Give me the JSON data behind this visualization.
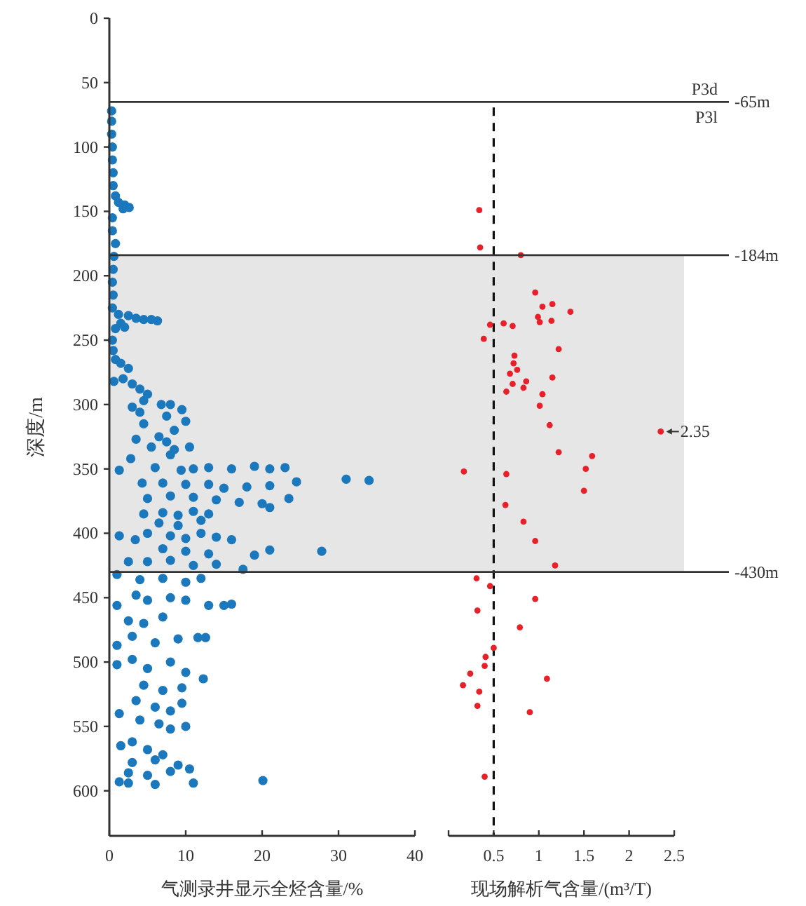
{
  "chart_data": [
    {
      "type": "scatter",
      "xlabel": "气测录井显示全烃含量/%",
      "ylabel": "深度/m",
      "marker": "circle",
      "xlim": [
        0,
        40
      ],
      "xticks": [
        0,
        10,
        20,
        30,
        40
      ],
      "ylim": [
        635,
        0
      ],
      "yticks": [
        0,
        50,
        100,
        150,
        200,
        250,
        300,
        350,
        400,
        450,
        500,
        550,
        600
      ],
      "series": [
        {
          "color": "#1b78bd",
          "x": [
            0.3,
            0.3,
            0.3,
            0.4,
            0.4,
            0.5,
            0.5,
            0.8,
            1.2,
            2,
            2.6,
            1.8,
            0.4,
            0.4,
            0.8,
            0.6,
            0.5,
            0.4,
            0.5,
            0.4,
            1.2,
            2.5,
            3.5,
            4.5,
            5.5,
            6.3,
            1.5,
            0.8,
            2,
            0.4,
            0.5,
            0.8,
            1.5,
            2.5,
            0.6,
            1.8,
            3,
            4,
            5,
            4.5,
            6.8,
            8,
            9.5,
            3,
            4,
            7.5,
            10,
            4.5,
            8.5,
            3.5,
            6.5,
            7.5,
            5.5,
            8.5,
            10.5,
            8,
            2.8,
            1.3,
            6,
            9.4,
            11,
            13,
            16,
            19,
            21,
            23,
            31,
            34,
            4.3,
            7,
            10,
            13,
            15,
            18,
            21,
            24.5,
            5,
            8,
            11,
            14,
            17,
            20,
            23.5,
            21,
            4.5,
            7,
            9,
            11,
            13,
            6.5,
            9,
            12,
            5,
            1.3,
            3.4,
            8,
            10,
            12,
            14,
            16,
            21,
            27.8,
            7,
            10,
            13,
            19,
            2.5,
            5,
            8,
            11,
            14,
            17.5,
            1,
            4,
            7,
            10,
            12,
            1,
            3.5,
            5,
            8,
            10,
            13,
            15,
            16,
            2.5,
            4.5,
            7,
            3,
            6,
            9,
            11.6,
            12.6,
            1,
            1,
            3,
            5,
            8,
            10,
            12.3,
            4.5,
            7,
            9.5,
            3.5,
            6,
            8,
            9.5,
            4,
            6.5,
            8,
            10,
            1.3,
            1.5,
            3,
            5,
            7,
            3,
            6,
            9,
            2.5,
            5,
            8,
            10.5,
            1.3,
            2.5,
            6,
            11,
            20.1
          ],
          "values": [
            72,
            80,
            90,
            100,
            110,
            120,
            130,
            138,
            143,
            145,
            147,
            148,
            155,
            165,
            175,
            185,
            195,
            205,
            215,
            225,
            230,
            231,
            233,
            234,
            234,
            235,
            237,
            241,
            240,
            250,
            258,
            265,
            268,
            272,
            282,
            280,
            284,
            288,
            292,
            297,
            300,
            300,
            304,
            302,
            306,
            309,
            313,
            315,
            320,
            327,
            325,
            329,
            333,
            335,
            333,
            339,
            342,
            351,
            349,
            351,
            350,
            349,
            350,
            348,
            350,
            349,
            358,
            359,
            361,
            361,
            362,
            362,
            365,
            364,
            363,
            360,
            373,
            371,
            372,
            374,
            376,
            377,
            373,
            380,
            385,
            384,
            386,
            383,
            385,
            392,
            394,
            390,
            400,
            402,
            405,
            402,
            404,
            400,
            403,
            405,
            413,
            414,
            412,
            414,
            416,
            417,
            422,
            422,
            421,
            425,
            424,
            428,
            432,
            436,
            435,
            438,
            435,
            456,
            448,
            452,
            450,
            452,
            456,
            456,
            455,
            468,
            470,
            465,
            480,
            485,
            482,
            481,
            481,
            487,
            502,
            498,
            505,
            500,
            508,
            513,
            518,
            522,
            520,
            530,
            535,
            538,
            532,
            545,
            548,
            552,
            550,
            540,
            565,
            562,
            568,
            572,
            578,
            576,
            580,
            586,
            588,
            585,
            583,
            593,
            594,
            595,
            594,
            592
          ]
        }
      ],
      "ref_lines": [
        {
          "axis": "y",
          "value": 65,
          "color": "#333333"
        },
        {
          "axis": "y",
          "value": 184,
          "color": "#333333"
        },
        {
          "axis": "y",
          "value": 430,
          "color": "#333333"
        }
      ],
      "bands": [
        {
          "axis": "y",
          "from": 184,
          "to": 430,
          "color": "#e6e6e6"
        }
      ]
    },
    {
      "type": "scatter",
      "xlabel": "现场解析气含量/(m³/T)",
      "marker": "circle",
      "tick_labels": "x",
      "xlim": [
        0,
        2.5
      ],
      "xticks": [
        {
          "value": 0,
          "label": null
        },
        0.5,
        1,
        1.5,
        2,
        2.5
      ],
      "ylim": [
        635,
        0
      ],
      "series": [
        {
          "color": "#e8202a",
          "x": [
            0.34,
            0.35,
            0.8,
            0.96,
            1.04,
            1.15,
            1.35,
            0.99,
            1.01,
            1.14,
            0.46,
            0.61,
            0.71,
            0.39,
            1.22,
            0.73,
            0.72,
            0.76,
            0.68,
            1.15,
            0.86,
            0.71,
            0.83,
            0.64,
            1.04,
            1.01,
            1.12,
            2.35,
            1.22,
            1.59,
            0.17,
            0.64,
            1.52,
            1.5,
            0.63,
            0.83,
            0.96,
            1.18,
            0.31,
            0.46,
            0.96,
            0.32,
            0.79,
            0.5,
            0.41,
            0.4,
            1.09,
            0.24,
            0.16,
            0.34,
            0.32,
            0.9,
            0.4
          ],
          "values": [
            149,
            178,
            184,
            213,
            224,
            222,
            228,
            232,
            236,
            235,
            238,
            237,
            239,
            249,
            257,
            262,
            268,
            273,
            276,
            279,
            282,
            284,
            287,
            290,
            292,
            301,
            316,
            321,
            337,
            340,
            352,
            354,
            350,
            367,
            378,
            391,
            406,
            425,
            435,
            441,
            451,
            460,
            473,
            489,
            496,
            503,
            513,
            509,
            518,
            523,
            534,
            539,
            589
          ]
        }
      ],
      "ref_lines": [
        {
          "axis": "x",
          "value": 0.5,
          "line_style": "dashed",
          "color": "#111111"
        },
        {
          "axis": "y",
          "value": 65,
          "label": "-65m",
          "color": "#333333"
        },
        {
          "axis": "y",
          "value": 184,
          "label": "-184m",
          "color": "#333333"
        },
        {
          "axis": "y",
          "value": 430,
          "label": "-430m",
          "color": "#333333"
        }
      ],
      "bands": [
        {
          "axis": "y",
          "from": 184,
          "to": 430,
          "color": "#e6e6e6"
        }
      ],
      "annotations": [
        "P3d",
        "P3l",
        {
          "text": "2.35",
          "x": 2.35,
          "y": 321
        }
      ]
    }
  ]
}
